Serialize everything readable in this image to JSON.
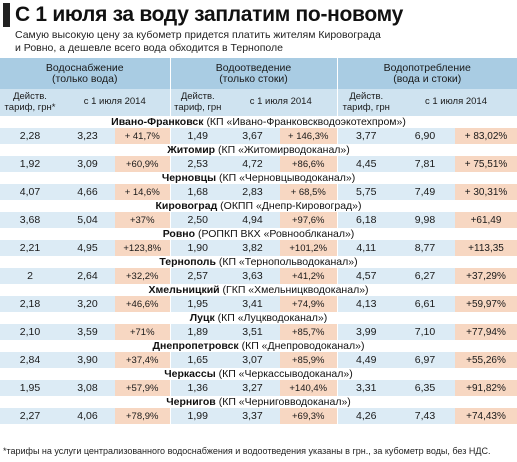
{
  "header": {
    "title": "С 1 июля за воду заплатим по-новому",
    "subtitle": "Самую высокую цену за кубометр придется платить жителям Кировограда и Ровно, а дешевле всего вода обходится в Тернополе"
  },
  "table": {
    "groups": [
      "Водоснабжение\n(только вода)",
      "Водоотведение\n(только стоки)",
      "Водопотребление\n(вода и стоки)"
    ],
    "subheaders": {
      "current": "Действ.\nтариф, грн*",
      "current_plain": "Действ.\nтариф, грн",
      "from_july": "с 1 июля 2014"
    },
    "rows": [
      {
        "city": "Ивано-Франковск",
        "company": "(КП «Ивано-Франковскводоэкотехпром»)",
        "values": [
          "2,28",
          "3,23",
          "+ 41,7%",
          "1,49",
          "3,67",
          "+ 146,3%",
          "3,77",
          "6,90",
          "+ 83,02%"
        ]
      },
      {
        "city": "Житомир",
        "company": "(КП «Житомирводоканал»)",
        "values": [
          "1,92",
          "3,09",
          "+60,9%",
          "2,53",
          "4,72",
          "+86,6%",
          "4,45",
          "7,81",
          "+ 75,51%"
        ]
      },
      {
        "city": "Черновцы",
        "company": "(КП «Черновцыводоканал»)",
        "values": [
          "4,07",
          "4,66",
          "+ 14,6%",
          "1,68",
          "2,83",
          "+ 68,5%",
          "5,75",
          "7,49",
          "+ 30,31%"
        ]
      },
      {
        "city": "Кировоград",
        "company": "(ОКПП «Днепр-Кировоград»)",
        "values": [
          "3,68",
          "5,04",
          "+37%",
          "2,50",
          "4,94",
          "+97,6%",
          "6,18",
          "9,98",
          "+61,49"
        ]
      },
      {
        "city": "Ровно",
        "company": "(РОПКП ВКХ «Ровнооблканал»)",
        "values": [
          "2,21",
          "4,95",
          "+123,8%",
          "1,90",
          "3,82",
          "+101,2%",
          "4,11",
          "8,77",
          "+113,35"
        ]
      },
      {
        "city": "Тернополь",
        "company": "(КП «Тернопольводоканал»)",
        "values": [
          "2",
          "2,64",
          "+32,2%",
          "2,57",
          "3,63",
          "+41,2%",
          "4,57",
          "6,27",
          "+37,29%"
        ]
      },
      {
        "city": "Хмельницкий",
        "company": "(ГКП «Хмельницкводоканал»)",
        "values": [
          "2,18",
          "3,20",
          "+46,6%",
          "1,95",
          "3,41",
          "+74,9%",
          "4,13",
          "6,61",
          "+59,97%"
        ]
      },
      {
        "city": "Луцк",
        "company": "(КП «Луцкводоканал»)",
        "values": [
          "2,10",
          "3,59",
          "+71%",
          "1,89",
          "3,51",
          "+85,7%",
          "3,99",
          "7,10",
          "+77,94%"
        ]
      },
      {
        "city": "Днепропетровск",
        "company": "(КП «Днепроводоканал»)",
        "values": [
          "2,84",
          "3,90",
          "+37,4%",
          "1,65",
          "3,07",
          "+85,9%",
          "4,49",
          "6,97",
          "+55,26%"
        ]
      },
      {
        "city": "Черкассы",
        "company": "(КП «Черкассыводоканал»)",
        "values": [
          "1,95",
          "3,08",
          "+57,9%",
          "1,36",
          "3,27",
          "+140,4%",
          "3,31",
          "6,35",
          "+91,82%"
        ]
      },
      {
        "city": "Чернигов",
        "company": "(КП «Черниговводоканал»)",
        "values": [
          "2,27",
          "4,06",
          "+78,9%",
          "1,99",
          "3,37",
          "+69,3%",
          "4,26",
          "7,43",
          "+74,43%"
        ]
      }
    ]
  },
  "footnote": "*тарифы на услуги централизованного водоснабжения и водоотведения указаны в грн., за кубометр воды, без НДС."
}
